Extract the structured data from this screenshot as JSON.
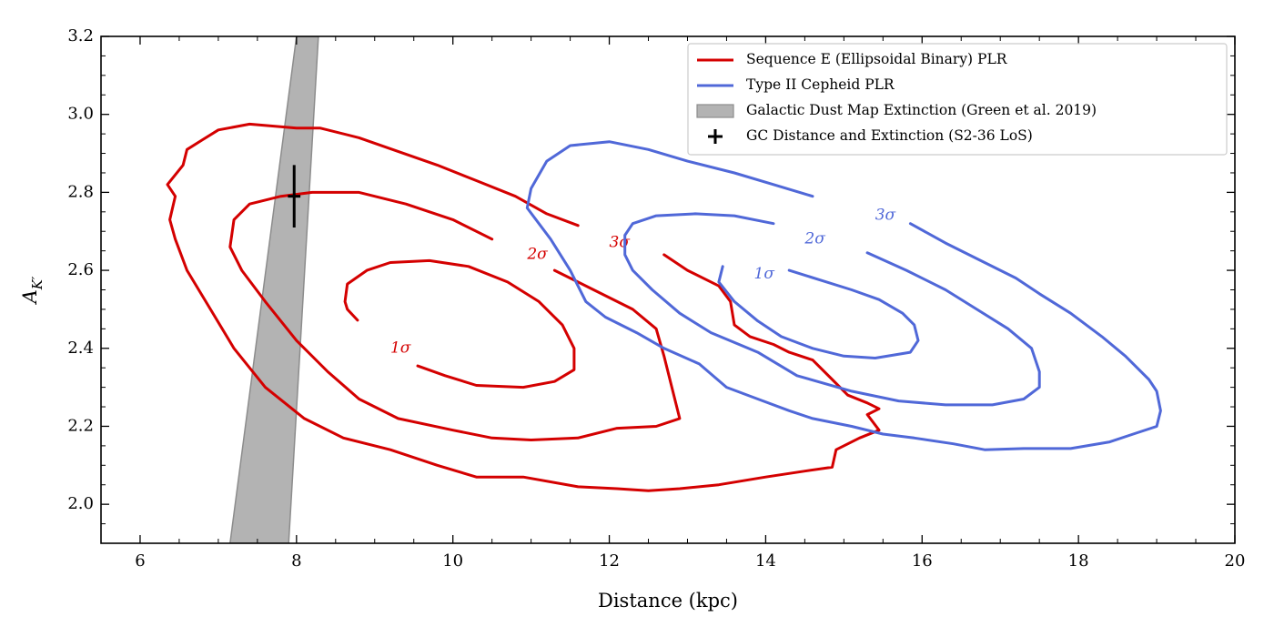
{
  "chart_data": {
    "type": "contour",
    "xlabel": "Distance (kpc)",
    "ylabel": "A_K′",
    "xlim": [
      5.5,
      20
    ],
    "ylim": [
      1.9,
      3.2
    ],
    "x_ticks": [
      6,
      8,
      10,
      12,
      14,
      16,
      18,
      20
    ],
    "y_ticks": [
      2.0,
      2.2,
      2.4,
      2.6,
      2.8,
      3.0,
      3.2
    ],
    "x_tick_labels": [
      "6",
      "8",
      "10",
      "12",
      "14",
      "16",
      "18",
      "20"
    ],
    "y_tick_labels": [
      "2.0",
      "2.2",
      "2.4",
      "2.6",
      "2.8",
      "3.0",
      "3.2"
    ],
    "grid": false,
    "legend_position": "top-right",
    "colors": {
      "red": "#d40000",
      "blue": "#5068d8",
      "band": "#b3b3b3",
      "band_edge": "#8c8c8c",
      "cross": "#000000"
    },
    "legend": [
      {
        "label": "Sequence E (Ellipsoidal Binary) PLR",
        "symbol": "line",
        "color": "#d40000"
      },
      {
        "label": "Type II Cepheid PLR",
        "symbol": "line",
        "color": "#5068d8"
      },
      {
        "label": "Galactic Dust Map Extinction (Green et al. 2019)",
        "symbol": "patch",
        "color": "#b3b3b3"
      },
      {
        "label": "GC Distance and Extinction (S2-36 LoS)",
        "symbol": "cross",
        "color": "#000000"
      }
    ],
    "dust_band": {
      "left_edge": [
        [
          7.15,
          1.9
        ],
        [
          8.0,
          3.2
        ]
      ],
      "right_edge": [
        [
          7.9,
          1.9
        ],
        [
          8.28,
          3.2
        ]
      ]
    },
    "gc_point": {
      "distance": 7.97,
      "extinction": 2.79,
      "extinction_err": 0.08,
      "distance_err": 0.08
    },
    "series": [
      {
        "name": "Sequence E (Ellipsoidal Binary) PLR",
        "color": "red",
        "contours": [
          {
            "level": "1σ",
            "label": {
              "text": "1σ",
              "x": 9.2,
              "y": 2.4
            },
            "points": [
              [
                9.55,
                2.355
              ],
              [
                9.9,
                2.33
              ],
              [
                10.3,
                2.305
              ],
              [
                10.9,
                2.3
              ],
              [
                11.3,
                2.315
              ],
              [
                11.55,
                2.345
              ],
              [
                11.55,
                2.4
              ],
              [
                11.4,
                2.46
              ],
              [
                11.1,
                2.52
              ],
              [
                10.7,
                2.57
              ],
              [
                10.2,
                2.61
              ],
              [
                9.7,
                2.625
              ],
              [
                9.2,
                2.62
              ],
              [
                8.9,
                2.6
              ],
              [
                8.65,
                2.565
              ],
              [
                8.62,
                2.52
              ],
              [
                8.65,
                2.5
              ],
              [
                8.78,
                2.472
              ]
            ]
          },
          {
            "level": "2σ",
            "label": {
              "text": "2σ",
              "x": 10.95,
              "y": 2.64
            },
            "points": [
              [
                11.3,
                2.6
              ],
              [
                11.8,
                2.55
              ],
              [
                12.3,
                2.5
              ],
              [
                12.6,
                2.45
              ],
              [
                12.7,
                2.38
              ],
              [
                12.8,
                2.3
              ],
              [
                12.9,
                2.22
              ],
              [
                12.6,
                2.2
              ],
              [
                12.1,
                2.195
              ],
              [
                11.6,
                2.17
              ],
              [
                11.0,
                2.165
              ],
              [
                10.5,
                2.17
              ],
              [
                10.0,
                2.19
              ],
              [
                9.3,
                2.22
              ],
              [
                8.8,
                2.27
              ],
              [
                8.4,
                2.34
              ],
              [
                8.0,
                2.42
              ],
              [
                7.6,
                2.52
              ],
              [
                7.3,
                2.6
              ],
              [
                7.15,
                2.66
              ],
              [
                7.2,
                2.73
              ],
              [
                7.4,
                2.77
              ],
              [
                7.8,
                2.79
              ],
              [
                8.2,
                2.8
              ],
              [
                8.8,
                2.8
              ],
              [
                9.4,
                2.77
              ],
              [
                10.0,
                2.73
              ],
              [
                10.5,
                2.68
              ]
            ]
          },
          {
            "level": "3σ",
            "label": {
              "text": "3σ",
              "x": 12.0,
              "y": 2.67
            },
            "points": [
              [
                12.7,
                2.64
              ],
              [
                13.0,
                2.6
              ],
              [
                13.4,
                2.56
              ],
              [
                13.55,
                2.52
              ],
              [
                13.6,
                2.46
              ],
              [
                13.8,
                2.43
              ],
              [
                14.1,
                2.41
              ],
              [
                14.3,
                2.39
              ],
              [
                14.6,
                2.37
              ],
              [
                14.85,
                2.32
              ],
              [
                15.05,
                2.28
              ],
              [
                15.3,
                2.26
              ],
              [
                15.45,
                2.245
              ],
              [
                15.3,
                2.23
              ],
              [
                15.45,
                2.19
              ],
              [
                15.2,
                2.17
              ],
              [
                14.9,
                2.14
              ],
              [
                14.85,
                2.095
              ],
              [
                14.5,
                2.085
              ],
              [
                14.0,
                2.07
              ],
              [
                13.4,
                2.05
              ],
              [
                12.9,
                2.04
              ],
              [
                12.5,
                2.035
              ],
              [
                12.1,
                2.04
              ],
              [
                11.6,
                2.045
              ],
              [
                10.9,
                2.07
              ],
              [
                10.3,
                2.07
              ],
              [
                9.8,
                2.1
              ],
              [
                9.2,
                2.14
              ],
              [
                8.6,
                2.17
              ],
              [
                8.1,
                2.22
              ],
              [
                7.6,
                2.3
              ],
              [
                7.2,
                2.4
              ],
              [
                6.9,
                2.5
              ],
              [
                6.6,
                2.6
              ],
              [
                6.45,
                2.68
              ],
              [
                6.38,
                2.73
              ],
              [
                6.45,
                2.79
              ],
              [
                6.35,
                2.82
              ],
              [
                6.55,
                2.87
              ],
              [
                6.6,
                2.91
              ],
              [
                6.8,
                2.935
              ],
              [
                7.0,
                2.96
              ],
              [
                7.4,
                2.975
              ],
              [
                8.0,
                2.965
              ],
              [
                8.3,
                2.965
              ],
              [
                8.8,
                2.94
              ],
              [
                9.3,
                2.905
              ],
              [
                9.8,
                2.87
              ],
              [
                10.3,
                2.83
              ],
              [
                10.8,
                2.79
              ],
              [
                11.2,
                2.745
              ],
              [
                11.6,
                2.715
              ]
            ]
          }
        ]
      },
      {
        "name": "Type II Cepheid PLR",
        "color": "blue",
        "contours": [
          {
            "level": "1σ",
            "label": {
              "text": "1σ",
              "x": 13.85,
              "y": 2.59
            },
            "points": [
              [
                14.3,
                2.6
              ],
              [
                14.7,
                2.575
              ],
              [
                15.1,
                2.55
              ],
              [
                15.45,
                2.525
              ],
              [
                15.75,
                2.49
              ],
              [
                15.9,
                2.46
              ],
              [
                15.95,
                2.42
              ],
              [
                15.85,
                2.39
              ],
              [
                15.4,
                2.375
              ],
              [
                15.0,
                2.38
              ],
              [
                14.6,
                2.4
              ],
              [
                14.2,
                2.43
              ],
              [
                13.9,
                2.47
              ],
              [
                13.6,
                2.52
              ],
              [
                13.4,
                2.57
              ],
              [
                13.45,
                2.61
              ]
            ]
          },
          {
            "level": "2σ",
            "label": {
              "text": "2σ",
              "x": 14.5,
              "y": 2.68
            },
            "points": [
              [
                14.1,
                2.72
              ],
              [
                13.6,
                2.74
              ],
              [
                13.1,
                2.745
              ],
              [
                12.6,
                2.74
              ],
              [
                12.3,
                2.72
              ],
              [
                12.2,
                2.69
              ],
              [
                12.2,
                2.64
              ],
              [
                12.3,
                2.6
              ],
              [
                12.55,
                2.55
              ],
              [
                12.9,
                2.49
              ],
              [
                13.3,
                2.44
              ],
              [
                13.9,
                2.39
              ],
              [
                14.4,
                2.33
              ],
              [
                15.1,
                2.29
              ],
              [
                15.7,
                2.265
              ],
              [
                16.3,
                2.255
              ],
              [
                16.9,
                2.255
              ],
              [
                17.3,
                2.27
              ],
              [
                17.5,
                2.3
              ],
              [
                17.5,
                2.34
              ],
              [
                17.4,
                2.4
              ],
              [
                17.1,
                2.45
              ],
              [
                16.7,
                2.5
              ],
              [
                16.3,
                2.55
              ],
              [
                15.8,
                2.6
              ],
              [
                15.3,
                2.645
              ]
            ]
          },
          {
            "level": "3σ",
            "label": {
              "text": "3σ",
              "x": 15.4,
              "y": 2.74
            },
            "points": [
              [
                15.85,
                2.72
              ],
              [
                16.3,
                2.67
              ],
              [
                16.8,
                2.62
              ],
              [
                17.2,
                2.58
              ],
              [
                17.5,
                2.54
              ],
              [
                17.9,
                2.49
              ],
              [
                18.3,
                2.43
              ],
              [
                18.6,
                2.38
              ],
              [
                18.9,
                2.32
              ],
              [
                19.0,
                2.29
              ],
              [
                19.05,
                2.24
              ],
              [
                19.0,
                2.2
              ],
              [
                18.7,
                2.18
              ],
              [
                18.4,
                2.16
              ],
              [
                17.9,
                2.143
              ],
              [
                17.3,
                2.143
              ],
              [
                16.8,
                2.14
              ],
              [
                16.4,
                2.155
              ],
              [
                15.9,
                2.17
              ],
              [
                15.5,
                2.18
              ],
              [
                15.1,
                2.2
              ],
              [
                14.6,
                2.22
              ],
              [
                14.3,
                2.24
              ],
              [
                13.9,
                2.27
              ],
              [
                13.5,
                2.3
              ],
              [
                13.15,
                2.36
              ],
              [
                12.7,
                2.4
              ],
              [
                12.35,
                2.44
              ],
              [
                11.95,
                2.48
              ],
              [
                11.7,
                2.52
              ],
              [
                11.5,
                2.6
              ],
              [
                11.25,
                2.68
              ],
              [
                10.95,
                2.76
              ],
              [
                11.0,
                2.81
              ],
              [
                11.2,
                2.88
              ],
              [
                11.5,
                2.92
              ],
              [
                12.0,
                2.93
              ],
              [
                12.5,
                2.91
              ],
              [
                13.0,
                2.88
              ],
              [
                13.6,
                2.85
              ],
              [
                14.1,
                2.82
              ],
              [
                14.6,
                2.79
              ]
            ]
          }
        ]
      }
    ]
  }
}
